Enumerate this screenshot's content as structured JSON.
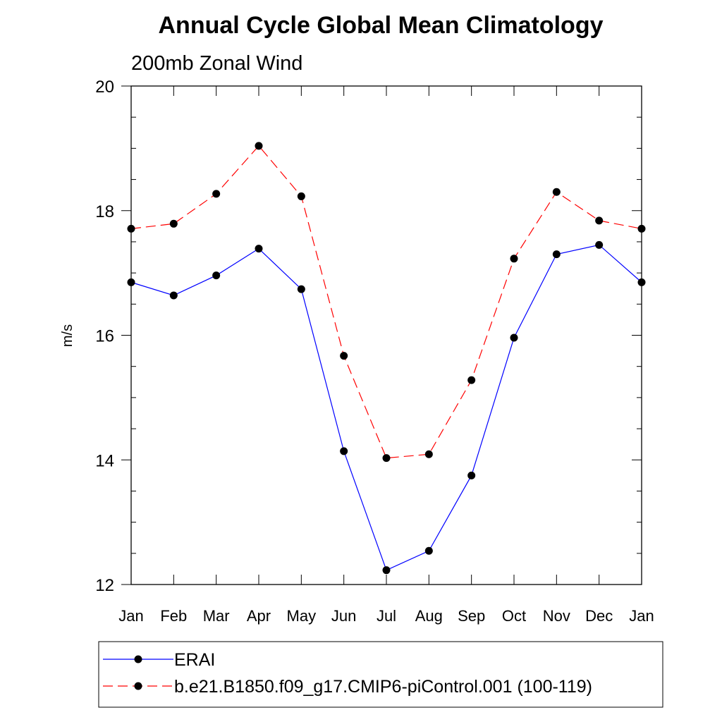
{
  "chart_data": {
    "type": "line",
    "title": "Annual Cycle Global Mean Climatology",
    "subtitle": "200mb Zonal Wind",
    "xlabel": "",
    "ylabel": "m/s",
    "categories": [
      "Jan",
      "Feb",
      "Mar",
      "Apr",
      "May",
      "Jun",
      "Jul",
      "Aug",
      "Sep",
      "Oct",
      "Nov",
      "Dec",
      "Jan"
    ],
    "ylim": [
      12,
      20
    ],
    "yticks": [
      12,
      14,
      16,
      18,
      20
    ],
    "grid": false,
    "legend_position": "bottom",
    "series": [
      {
        "name": "ERAI",
        "color": "#0000ff",
        "dash": "solid",
        "marker": "filled-circle",
        "values": [
          16.85,
          16.64,
          16.96,
          17.39,
          16.74,
          14.14,
          12.23,
          12.54,
          13.75,
          15.96,
          17.3,
          17.45,
          16.85
        ]
      },
      {
        "name": "b.e21.B1850.f09_g17.CMIP6-piControl.001 (100-119)",
        "color": "#ff0000",
        "dash": "dashed",
        "marker": "filled-circle",
        "values": [
          17.71,
          17.79,
          18.27,
          19.04,
          18.23,
          15.67,
          14.03,
          14.09,
          15.28,
          17.23,
          18.3,
          17.84,
          17.71
        ]
      }
    ]
  }
}
